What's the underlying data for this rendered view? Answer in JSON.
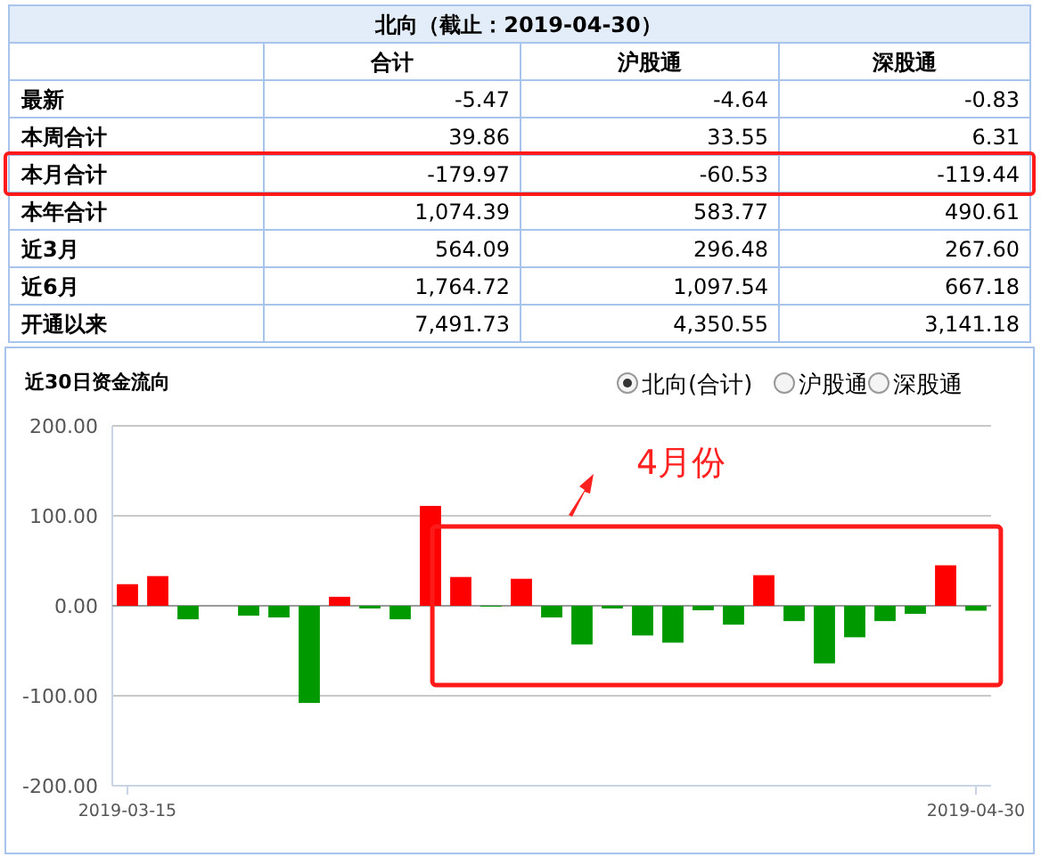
{
  "chart_data": [
    {
      "type": "heatmap",
      "title": "北向（截止：2019-04-30）",
      "categories": [
        "合计",
        "沪股通",
        "深股通"
      ],
      "y_categories": [
        "最新",
        "本周合计",
        "本月合计",
        "本年合计",
        "近3月",
        "近6月",
        "开通以来"
      ],
      "cells": [
        [
          -5.47,
          -4.64,
          -0.83
        ],
        [
          39.86,
          33.55,
          6.31
        ],
        [
          -179.97,
          -60.53,
          -119.44
        ],
        [
          1074.39,
          583.77,
          490.61
        ],
        [
          564.09,
          296.48,
          267.6
        ],
        [
          1764.72,
          1097.54,
          667.18
        ],
        [
          7491.73,
          4350.55,
          3141.18
        ]
      ],
      "cell_labels": [
        [
          "-5.47",
          "-4.64",
          "-0.83"
        ],
        [
          "39.86",
          "33.55",
          "6.31"
        ],
        [
          "-179.97",
          "-60.53",
          "-119.44"
        ],
        [
          "1,074.39",
          "583.77",
          "490.61"
        ],
        [
          "564.09",
          "296.48",
          "267.60"
        ],
        [
          "1,764.72",
          "1,097.54",
          "667.18"
        ],
        [
          "7,491.73",
          "4,350.55",
          "3,141.18"
        ]
      ]
    },
    {
      "type": "bar",
      "title": "近30日资金流向",
      "annotations": [
        "4月份"
      ],
      "categories": [
        "2019-03-15",
        null,
        null,
        null,
        null,
        null,
        null,
        null,
        null,
        null,
        null,
        null,
        null,
        null,
        null,
        null,
        null,
        null,
        null,
        null,
        null,
        null,
        null,
        null,
        null,
        null,
        null,
        null,
        "2019-04-30"
      ],
      "series": [
        {
          "name": "北向(合计)",
          "values": [
            24,
            33,
            -15,
            null,
            -11,
            -13,
            -108,
            10,
            -3,
            -15,
            111,
            32,
            -1,
            30,
            -13,
            -43,
            -3,
            -33,
            -41,
            -5,
            -21,
            34,
            -17,
            -64,
            -35,
            -17,
            -9,
            45,
            -5.47
          ],
          "colors": [
            "#ff0000",
            "#ff0000",
            "#009900",
            null,
            "#009900",
            "#009900",
            "#009900",
            "#ff0000",
            "#009900",
            "#009900",
            "#ff0000",
            "#ff0000",
            "#009900",
            "#ff0000",
            "#009900",
            "#009900",
            "#009900",
            "#009900",
            "#009900",
            "#009900",
            "#009900",
            "#ff0000",
            "#009900",
            "#009900",
            "#009900",
            "#009900",
            "#009900",
            "#ff0000",
            "#009900"
          ]
        },
        {
          "name": "沪股通",
          "values": [
            null,
            null,
            null,
            null,
            null,
            null,
            null,
            null,
            null,
            null,
            null,
            null,
            null,
            null,
            null,
            null,
            null,
            null,
            null,
            null,
            null,
            null,
            null,
            null,
            null,
            null,
            null,
            null,
            null
          ]
        },
        {
          "name": "深股通",
          "values": [
            null,
            null,
            null,
            null,
            null,
            null,
            null,
            null,
            null,
            null,
            null,
            null,
            null,
            null,
            null,
            null,
            null,
            null,
            null,
            null,
            null,
            null,
            null,
            null,
            null,
            null,
            null,
            null,
            null
          ]
        }
      ],
      "ylim": [
        -200,
        200
      ],
      "yticks": [
        {
          "value": -200,
          "label": "-200.00"
        },
        {
          "value": -100,
          "label": "-100.00"
        },
        {
          "value": 0,
          "label": "0.00"
        },
        {
          "value": 100,
          "label": "100.00"
        },
        {
          "value": 200,
          "label": "200.00"
        }
      ],
      "grid": "y",
      "legend": "top right"
    }
  ]
}
